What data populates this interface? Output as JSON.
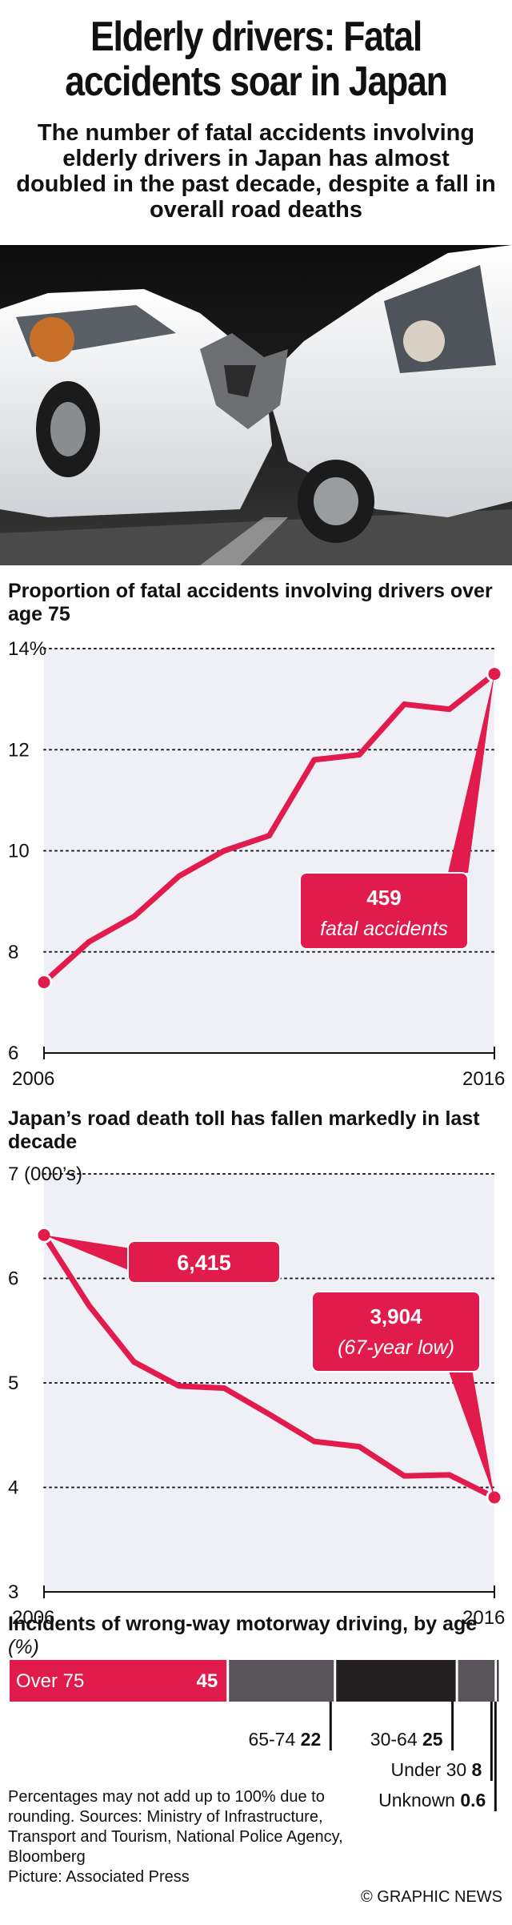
{
  "header": {
    "title": "Elderly drivers: Fatal accidents soar in Japan",
    "subtitle": "The number of fatal accidents involving elderly drivers in Japan has almost doubled in the past decade, despite a fall in overall road deaths"
  },
  "photo": {
    "description_icon": "car-crash-photo"
  },
  "colors": {
    "accent": "#e21b4d",
    "dark": "#231f20",
    "mid": "#595459",
    "grid": "#222222"
  },
  "chart_data": [
    {
      "type": "line",
      "title": "Proportion of fatal accidents involving drivers over age 75",
      "x": [
        2006,
        2007,
        2008,
        2009,
        2010,
        2011,
        2012,
        2013,
        2014,
        2015,
        2016
      ],
      "series": [
        {
          "values": [
            7.4,
            8.2,
            8.7,
            9.5,
            10.0,
            10.3,
            11.8,
            11.9,
            12.9,
            12.8,
            13.5
          ]
        }
      ],
      "ylim": [
        6,
        14
      ],
      "yticks": [
        6,
        8,
        10,
        12,
        14
      ],
      "ytick_labels": [
        "6",
        "8",
        "10",
        "12",
        "14%"
      ],
      "xtick_labels": [
        "2006",
        "2016"
      ],
      "annotation": {
        "value": "459",
        "text": "fatal accidents"
      },
      "grid": true
    },
    {
      "type": "line",
      "title": "Japan’s road death toll has fallen markedly in last decade",
      "x": [
        2006,
        2007,
        2008,
        2009,
        2010,
        2011,
        2012,
        2013,
        2014,
        2015,
        2016
      ],
      "series": [
        {
          "values": [
            6.415,
            5.74,
            5.2,
            4.97,
            4.95,
            4.7,
            4.44,
            4.39,
            4.11,
            4.12,
            3.904
          ]
        }
      ],
      "ylim": [
        3,
        7
      ],
      "yticks": [
        3,
        4,
        5,
        6,
        7
      ],
      "ytick_labels": [
        "3",
        "4",
        "5",
        "6",
        "7 (000’s)"
      ],
      "xtick_labels": [
        "2006",
        "2016"
      ],
      "annotations": [
        {
          "value": "6,415"
        },
        {
          "value": "3,904",
          "text": "(67-year low)"
        }
      ],
      "grid": true
    },
    {
      "type": "bar",
      "title": "Incidents of wrong-way motorway driving, by age",
      "unit": "(%)",
      "categories": [
        "Over 75",
        "65-74",
        "30-64",
        "Under 30",
        "Unknown"
      ],
      "values": [
        45,
        22,
        25,
        8,
        0.6
      ],
      "value_labels": [
        "45",
        "22",
        "25",
        "8",
        "0.6"
      ]
    }
  ],
  "footer": {
    "note": "Percentages may not add up to 100% due to rounding. Sources: Ministry of Infrastructure, Transport and Tourism, National Police Agency, Bloomberg",
    "picture": "Picture: Associated Press",
    "credit": "© GRAPHIC NEWS"
  }
}
